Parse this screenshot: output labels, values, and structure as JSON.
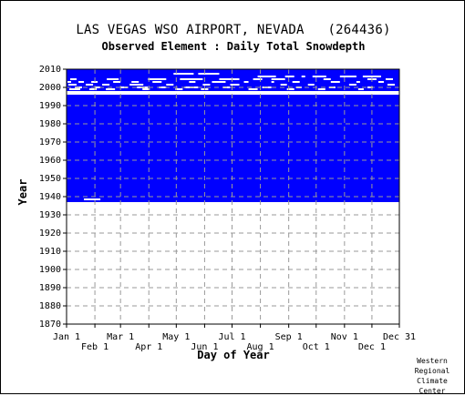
{
  "header": {
    "title": "LAS VEGAS WSO AIRPORT, NEVADA   (264436)",
    "subtitle": "Observed Element : Daily Total Snowdepth"
  },
  "credit": [
    "Western",
    "Regional",
    "Climate",
    "Center"
  ],
  "colors": {
    "fill": "#0000ff",
    "background": "#ffffff",
    "grid": "#9a9a9a",
    "axis": "#000000"
  },
  "chart_data": {
    "type": "heatmap",
    "title": "LAS VEGAS WSO AIRPORT, NEVADA   (264436)",
    "subtitle": "Observed Element : Daily Total Snowdepth",
    "xlabel": "Day of Year",
    "ylabel": "Year",
    "xlim": [
      1,
      365
    ],
    "ylim": [
      1870,
      2010
    ],
    "x_ticks_upper": [
      {
        "label": "Jan 1",
        "day": 1
      },
      {
        "label": "Mar 1",
        "day": 60
      },
      {
        "label": "May 1",
        "day": 121
      },
      {
        "label": "Jul 1",
        "day": 182
      },
      {
        "label": "Sep 1",
        "day": 244
      },
      {
        "label": "Nov 1",
        "day": 305
      },
      {
        "label": "Dec 31",
        "day": 365
      }
    ],
    "x_ticks_lower": [
      {
        "label": "Feb 1",
        "day": 32
      },
      {
        "label": "Apr 1",
        "day": 91
      },
      {
        "label": "Jun 1",
        "day": 152
      },
      {
        "label": "Aug 1",
        "day": 213
      },
      {
        "label": "Oct 1",
        "day": 274
      },
      {
        "label": "Dec 1",
        "day": 335
      }
    ],
    "y_ticks": [
      1870,
      1880,
      1890,
      1900,
      1910,
      1920,
      1930,
      1940,
      1950,
      1960,
      1970,
      1980,
      1990,
      2000,
      2010
    ],
    "grid": true,
    "period_of_record": [
      1937,
      2010
    ],
    "regions": [
      {
        "status": "observed",
        "day_start": 1,
        "day_end": 365,
        "year_start": 1937,
        "year_end": 2010
      }
    ],
    "gaps": [
      {
        "day_start": 1,
        "day_end": 365,
        "year_start": 1996,
        "year_end": 1998
      },
      {
        "day_start": 20,
        "day_end": 38,
        "year_start": 1938,
        "year_end": 1939
      }
    ],
    "gap_segments": [
      {
        "year": 2007.5,
        "days": [
          [
            118,
            140
          ],
          [
            145,
            168
          ]
        ]
      },
      {
        "year": 2006,
        "days": [
          [
            210,
            230
          ],
          [
            240,
            250
          ],
          [
            258,
            262
          ],
          [
            270,
            285
          ],
          [
            300,
            318
          ],
          [
            325,
            345
          ]
        ]
      },
      {
        "year": 2004.5,
        "days": [
          [
            5,
            12
          ],
          [
            45,
            58
          ],
          [
            90,
            110
          ],
          [
            125,
            150
          ],
          [
            168,
            190
          ],
          [
            205,
            215
          ],
          [
            225,
            240
          ],
          [
            282,
            290
          ],
          [
            330,
            340
          ],
          [
            350,
            358
          ]
        ]
      },
      {
        "year": 2003,
        "days": [
          [
            2,
            6
          ],
          [
            14,
            20
          ],
          [
            28,
            35
          ],
          [
            52,
            60
          ],
          [
            72,
            80
          ],
          [
            95,
            105
          ],
          [
            135,
            142
          ],
          [
            160,
            175
          ],
          [
            195,
            200
          ],
          [
            225,
            228
          ],
          [
            248,
            256
          ],
          [
            290,
            300
          ],
          [
            318,
            322
          ],
          [
            342,
            348
          ]
        ]
      },
      {
        "year": 2001.5,
        "days": [
          [
            3,
            12
          ],
          [
            22,
            30
          ],
          [
            40,
            48
          ],
          [
            70,
            85
          ],
          [
            110,
            118
          ],
          [
            150,
            158
          ],
          [
            180,
            190
          ],
          [
            235,
            242
          ],
          [
            265,
            272
          ],
          [
            310,
            318
          ],
          [
            352,
            360
          ]
        ]
      },
      {
        "year": 2000,
        "days": [
          [
            10,
            18
          ],
          [
            32,
            38
          ],
          [
            60,
            68
          ],
          [
            78,
            90
          ],
          [
            102,
            110
          ],
          [
            130,
            145
          ],
          [
            172,
            180
          ],
          [
            215,
            225
          ],
          [
            252,
            258
          ],
          [
            288,
            295
          ],
          [
            330,
            336
          ]
        ]
      },
      {
        "year": 1999,
        "days": [
          [
            4,
            16
          ],
          [
            26,
            34
          ],
          [
            44,
            54
          ],
          [
            84,
            92
          ],
          [
            120,
            128
          ],
          [
            148,
            156
          ],
          [
            200,
            210
          ],
          [
            242,
            250
          ],
          [
            276,
            284
          ],
          [
            320,
            326
          ]
        ]
      }
    ]
  }
}
